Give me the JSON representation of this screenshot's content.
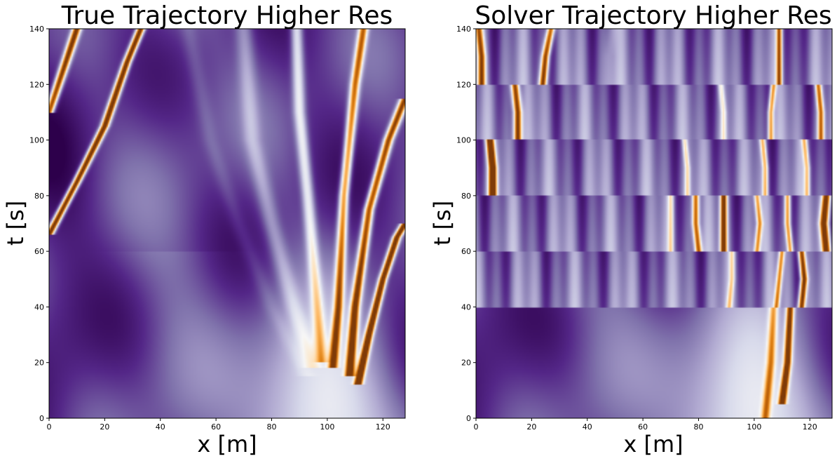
{
  "chart_data": [
    {
      "type": "heatmap",
      "title": "True Trajectory Higher Res",
      "xlabel": "x [m]",
      "ylabel": "t [s]",
      "xlim": [
        0,
        128
      ],
      "ylim": [
        0,
        140
      ],
      "xticks": [
        0,
        20,
        40,
        60,
        80,
        100,
        120
      ],
      "yticks": [
        0,
        20,
        40,
        60,
        80,
        100,
        120,
        140
      ],
      "colormap": [
        "#2d004b",
        "#542788",
        "#8073ac",
        "#b2abd2",
        "#d8daeb",
        "#f7f7f7",
        "#fee0b6",
        "#fdb863",
        "#e08214",
        "#b35806",
        "#7f3b08"
      ],
      "background": {
        "left_dark": true,
        "source_x": 97,
        "source_t": 0
      },
      "ridges": [
        {
          "points": [
            [
              0,
              66
            ],
            [
              10,
              85
            ],
            [
              20,
              105
            ],
            [
              28,
              128
            ],
            [
              33,
              140
            ]
          ],
          "strength": 1.0,
          "width": 1.4
        },
        {
          "points": [
            [
              0,
              110
            ],
            [
              6,
              128
            ],
            [
              10,
              140
            ]
          ],
          "strength": 0.9,
          "width": 1.5
        },
        {
          "points": [
            [
              111,
              12
            ],
            [
              115,
              30
            ],
            [
              120,
              50
            ],
            [
              125,
              65
            ],
            [
              128,
              70
            ]
          ],
          "strength": 1.0,
          "width": 1.4
        },
        {
          "points": [
            [
              108,
              15
            ],
            [
              110,
              40
            ],
            [
              115,
              75
            ],
            [
              122,
              100
            ],
            [
              128,
              115
            ]
          ],
          "strength": 0.85,
          "width": 1.6
        },
        {
          "points": [
            [
              102,
              18
            ],
            [
              104,
              40
            ],
            [
              106,
              80
            ],
            [
              110,
              120
            ],
            [
              113,
              140
            ]
          ],
          "strength": 0.7,
          "width": 1.6
        },
        {
          "points": [
            [
              98,
              20
            ],
            [
              96,
              45
            ],
            [
              93,
              80
            ],
            [
              90,
              110
            ],
            [
              89,
              140
            ]
          ],
          "strength": 0.35,
          "width": 2.0
        },
        {
          "points": [
            [
              95,
              18
            ],
            [
              88,
              40
            ],
            [
              80,
              70
            ],
            [
              73,
              100
            ],
            [
              70,
              140
            ]
          ],
          "strength": 0.15,
          "width": 3.0
        },
        {
          "points": [
            [
              93,
              15
            ],
            [
              80,
              40
            ],
            [
              68,
              70
            ],
            [
              58,
              100
            ],
            [
              50,
              140
            ]
          ],
          "strength": 0.05,
          "width": 3.0
        },
        {
          "points": [
            [
              0,
              120
            ],
            [
              10,
              110
            ],
            [
              20,
              95
            ],
            [
              35,
              75
            ],
            [
              50,
              55
            ]
          ],
          "strength": -0.05,
          "width": 3.0
        },
        {
          "points": [
            [
              5,
              140
            ],
            [
              20,
              115
            ],
            [
              30,
              100
            ],
            [
              45,
              80
            ]
          ],
          "strength": -0.05,
          "width": 2.5
        }
      ],
      "resets": []
    },
    {
      "type": "heatmap",
      "title": "Solver Trajectory Higher Res",
      "xlabel": "x [m]",
      "ylabel": "t [s]",
      "xlim": [
        0,
        128
      ],
      "ylim": [
        0,
        140
      ],
      "xticks": [
        0,
        20,
        40,
        60,
        80,
        100,
        120
      ],
      "yticks": [
        0,
        20,
        40,
        60,
        80,
        100,
        120,
        140
      ],
      "colormap": [
        "#2d004b",
        "#542788",
        "#8073ac",
        "#b2abd2",
        "#d8daeb",
        "#f7f7f7",
        "#fee0b6",
        "#fdb863",
        "#e08214",
        "#b35806",
        "#7f3b08"
      ],
      "background": {
        "left_dark": true,
        "source_x": 97,
        "source_t": 0
      },
      "ridges": [
        {
          "points": [
            [
              104,
              0
            ],
            [
              106,
              20
            ],
            [
              107,
              40
            ]
          ],
          "strength": 0.45,
          "width": 1.5
        },
        {
          "points": [
            [
              110,
              5
            ],
            [
              112,
              20
            ],
            [
              113,
              40
            ]
          ],
          "strength": 0.85,
          "width": 1.3
        },
        {
          "points": [
            [
              117,
              40
            ],
            [
              118,
              50
            ],
            [
              117,
              60
            ]
          ],
          "strength": 0.9,
          "width": 1.2
        },
        {
          "points": [
            [
              108,
              40
            ],
            [
              109,
              50
            ],
            [
              110,
              60
            ]
          ],
          "strength": 0.6,
          "width": 1.0
        },
        {
          "points": [
            [
              91,
              40
            ],
            [
              92,
              50
            ],
            [
              92,
              60
            ]
          ],
          "strength": 0.35,
          "width": 1.0
        },
        {
          "points": [
            [
              113,
              60
            ],
            [
              112,
              70
            ],
            [
              112,
              80
            ]
          ],
          "strength": 0.6,
          "width": 1.0
        },
        {
          "points": [
            [
              126,
              60
            ],
            [
              125,
              70
            ],
            [
              126,
              80
            ]
          ],
          "strength": 0.9,
          "width": 1.5
        },
        {
          "points": [
            [
              89,
              60
            ],
            [
              89,
              70
            ],
            [
              89,
              80
            ]
          ],
          "strength": 0.9,
          "width": 1.2
        },
        {
          "points": [
            [
              80,
              60
            ],
            [
              79,
              70
            ],
            [
              79,
              80
            ]
          ],
          "strength": 0.75,
          "width": 1.2
        },
        {
          "points": [
            [
              101,
              60
            ],
            [
              102,
              70
            ],
            [
              101,
              80
            ]
          ],
          "strength": 0.55,
          "width": 1.0
        },
        {
          "points": [
            [
              70,
              60
            ],
            [
              70,
              70
            ],
            [
              70,
              80
            ]
          ],
          "strength": 0.35,
          "width": 1.0
        },
        {
          "points": [
            [
              6,
              80
            ],
            [
              6,
              90
            ],
            [
              5,
              100
            ]
          ],
          "strength": 1.0,
          "width": 1.4
        },
        {
          "points": [
            [
              104,
              80
            ],
            [
              104,
              90
            ],
            [
              103,
              100
            ]
          ],
          "strength": 0.5,
          "width": 1.0
        },
        {
          "points": [
            [
              119,
              80
            ],
            [
              119,
              90
            ],
            [
              118,
              100
            ]
          ],
          "strength": 0.45,
          "width": 1.0
        },
        {
          "points": [
            [
              76,
              80
            ],
            [
              76,
              90
            ],
            [
              75,
              100
            ]
          ],
          "strength": 0.35,
          "width": 0.9
        },
        {
          "points": [
            [
              15,
              100
            ],
            [
              15,
              110
            ],
            [
              14,
              120
            ]
          ],
          "strength": 0.9,
          "width": 1.4
        },
        {
          "points": [
            [
              106,
              100
            ],
            [
              106,
              110
            ],
            [
              107,
              120
            ]
          ],
          "strength": 0.6,
          "width": 1.0
        },
        {
          "points": [
            [
              124,
              100
            ],
            [
              124,
              110
            ],
            [
              123,
              120
            ]
          ],
          "strength": 0.65,
          "width": 1.1
        },
        {
          "points": [
            [
              89,
              100
            ],
            [
              89,
              110
            ],
            [
              88,
              120
            ]
          ],
          "strength": 0.3,
          "width": 1.0
        },
        {
          "points": [
            [
              2,
              120
            ],
            [
              2,
              130
            ],
            [
              1,
              140
            ]
          ],
          "strength": 0.75,
          "width": 1.4
        },
        {
          "points": [
            [
              24,
              120
            ],
            [
              25,
              130
            ],
            [
              27,
              140
            ]
          ],
          "strength": 0.8,
          "width": 1.3
        },
        {
          "points": [
            [
              109,
              120
            ],
            [
              109,
              130
            ],
            [
              109,
              140
            ]
          ],
          "strength": 0.7,
          "width": 1.0
        },
        {
          "points": [
            [
              48,
              120
            ],
            [
              48,
              130
            ],
            [
              49,
              140
            ]
          ],
          "strength": 0.1,
          "width": 2.0
        }
      ],
      "resets": [
        40,
        60,
        80,
        100,
        120
      ]
    }
  ]
}
